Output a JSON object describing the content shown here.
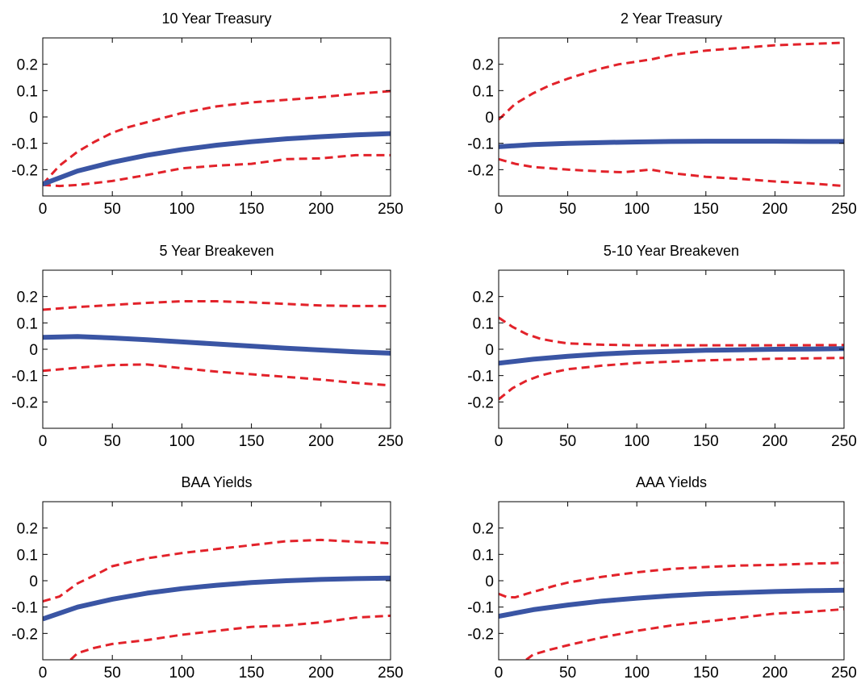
{
  "figure": {
    "background": "#ffffff"
  },
  "style": {
    "irf_color": "#3a55a4",
    "band_color": "#e2222a"
  },
  "chart_data": [
    {
      "type": "line",
      "title": "10 Year Treasury",
      "xlim": [
        0,
        250
      ],
      "ylim": [
        -0.3,
        0.3
      ],
      "xticks": [
        0,
        50,
        100,
        150,
        200,
        250
      ],
      "yticks": [
        -0.2,
        -0.1,
        0,
        0.1,
        0.2
      ],
      "ytick_labels": [
        "-0.2",
        "-0.1",
        "0",
        "0.1",
        "0.2"
      ],
      "grid": false,
      "series": [
        {
          "role": "point estimate",
          "style": "solid",
          "color": "#3a55a4",
          "x": [
            0,
            25,
            50,
            75,
            100,
            125,
            150,
            175,
            200,
            225,
            250
          ],
          "y": [
            -0.255,
            -0.205,
            -0.172,
            -0.145,
            -0.124,
            -0.107,
            -0.094,
            -0.083,
            -0.075,
            -0.068,
            -0.063
          ]
        },
        {
          "role": "upper bound",
          "style": "dashed",
          "color": "#e2222a",
          "x": [
            0,
            12,
            25,
            37,
            50,
            62,
            75,
            100,
            125,
            150,
            175,
            200,
            225,
            250
          ],
          "y": [
            -0.255,
            -0.185,
            -0.132,
            -0.095,
            -0.06,
            -0.038,
            -0.02,
            0.015,
            0.04,
            0.055,
            0.065,
            0.075,
            0.088,
            0.098
          ]
        },
        {
          "role": "lower bound",
          "style": "dashed",
          "color": "#e2222a",
          "x": [
            0,
            12,
            25,
            50,
            75,
            100,
            125,
            150,
            175,
            200,
            225,
            250
          ],
          "y": [
            -0.258,
            -0.262,
            -0.258,
            -0.243,
            -0.22,
            -0.195,
            -0.185,
            -0.178,
            -0.16,
            -0.157,
            -0.145,
            -0.145
          ]
        }
      ]
    },
    {
      "type": "line",
      "title": "2 Year Treasury",
      "xlim": [
        0,
        250
      ],
      "ylim": [
        -0.3,
        0.3
      ],
      "xticks": [
        0,
        50,
        100,
        150,
        200,
        250
      ],
      "yticks": [
        -0.2,
        -0.1,
        0,
        0.1,
        0.2
      ],
      "ytick_labels": [
        "-0.2",
        "-0.1",
        "0",
        "0.1",
        "0.2"
      ],
      "grid": false,
      "series": [
        {
          "role": "point estimate",
          "style": "solid",
          "color": "#3a55a4",
          "x": [
            0,
            25,
            50,
            75,
            100,
            125,
            150,
            175,
            200,
            225,
            250
          ],
          "y": [
            -0.113,
            -0.105,
            -0.1,
            -0.097,
            -0.095,
            -0.093,
            -0.092,
            -0.092,
            -0.092,
            -0.093,
            -0.093
          ]
        },
        {
          "role": "upper bound",
          "style": "dashed",
          "color": "#e2222a",
          "x": [
            0,
            12,
            25,
            37,
            50,
            62,
            75,
            87,
            100,
            112,
            125,
            150,
            175,
            200,
            225,
            250
          ],
          "y": [
            -0.01,
            0.05,
            0.09,
            0.12,
            0.145,
            0.165,
            0.185,
            0.2,
            0.21,
            0.22,
            0.235,
            0.252,
            0.262,
            0.272,
            0.277,
            0.282
          ]
        },
        {
          "role": "lower bound",
          "style": "dashed",
          "color": "#e2222a",
          "x": [
            0,
            12,
            25,
            50,
            75,
            90,
            100,
            110,
            125,
            150,
            175,
            200,
            225,
            250
          ],
          "y": [
            -0.16,
            -0.178,
            -0.19,
            -0.2,
            -0.207,
            -0.21,
            -0.205,
            -0.2,
            -0.213,
            -0.227,
            -0.235,
            -0.245,
            -0.252,
            -0.262
          ]
        }
      ]
    },
    {
      "type": "line",
      "title": "5 Year Breakeven",
      "xlim": [
        0,
        250
      ],
      "ylim": [
        -0.3,
        0.3
      ],
      "xticks": [
        0,
        50,
        100,
        150,
        200,
        250
      ],
      "yticks": [
        -0.2,
        -0.1,
        0,
        0.1,
        0.2
      ],
      "ytick_labels": [
        "-0.2",
        "-0.1",
        "0",
        "0.1",
        "0.2"
      ],
      "grid": false,
      "series": [
        {
          "role": "point estimate",
          "style": "solid",
          "color": "#3a55a4",
          "x": [
            0,
            25,
            50,
            75,
            100,
            125,
            150,
            175,
            200,
            225,
            250
          ],
          "y": [
            0.045,
            0.048,
            0.043,
            0.036,
            0.028,
            0.02,
            0.012,
            0.004,
            -0.003,
            -0.01,
            -0.015
          ]
        },
        {
          "role": "upper bound",
          "style": "dashed",
          "color": "#e2222a",
          "x": [
            0,
            25,
            50,
            75,
            100,
            125,
            150,
            175,
            200,
            225,
            250
          ],
          "y": [
            0.15,
            0.16,
            0.168,
            0.176,
            0.182,
            0.182,
            0.178,
            0.172,
            0.166,
            0.164,
            0.164
          ]
        },
        {
          "role": "lower bound",
          "style": "dashed",
          "color": "#e2222a",
          "x": [
            0,
            25,
            50,
            75,
            100,
            125,
            150,
            175,
            200,
            225,
            250
          ],
          "y": [
            -0.082,
            -0.07,
            -0.06,
            -0.058,
            -0.072,
            -0.085,
            -0.095,
            -0.105,
            -0.115,
            -0.128,
            -0.137
          ]
        }
      ]
    },
    {
      "type": "line",
      "title": "5-10 Year Breakeven",
      "xlim": [
        0,
        250
      ],
      "ylim": [
        -0.3,
        0.3
      ],
      "xticks": [
        0,
        50,
        100,
        150,
        200,
        250
      ],
      "yticks": [
        -0.2,
        -0.1,
        0,
        0.1,
        0.2
      ],
      "ytick_labels": [
        "-0.2",
        "-0.1",
        "0",
        "0.1",
        "0.2"
      ],
      "grid": false,
      "series": [
        {
          "role": "point estimate",
          "style": "solid",
          "color": "#3a55a4",
          "x": [
            0,
            25,
            50,
            75,
            100,
            125,
            150,
            175,
            200,
            225,
            250
          ],
          "y": [
            -0.053,
            -0.038,
            -0.027,
            -0.018,
            -0.012,
            -0.008,
            -0.004,
            -0.002,
            0,
            0.001,
            0.002
          ]
        },
        {
          "role": "upper bound",
          "style": "dashed",
          "color": "#e2222a",
          "x": [
            0,
            10,
            20,
            30,
            40,
            50,
            75,
            100,
            150,
            200,
            250
          ],
          "y": [
            0.12,
            0.085,
            0.058,
            0.04,
            0.03,
            0.022,
            0.017,
            0.015,
            0.015,
            0.015,
            0.016
          ]
        },
        {
          "role": "lower bound",
          "style": "dashed",
          "color": "#e2222a",
          "x": [
            0,
            10,
            20,
            30,
            40,
            50,
            75,
            100,
            150,
            200,
            250
          ],
          "y": [
            -0.19,
            -0.148,
            -0.12,
            -0.1,
            -0.087,
            -0.076,
            -0.062,
            -0.052,
            -0.042,
            -0.036,
            -0.033
          ]
        }
      ]
    },
    {
      "type": "line",
      "title": "BAA Yields",
      "xlim": [
        0,
        250
      ],
      "ylim": [
        -0.3,
        0.3
      ],
      "xticks": [
        0,
        50,
        100,
        150,
        200,
        250
      ],
      "yticks": [
        -0.2,
        -0.1,
        0,
        0.1,
        0.2
      ],
      "ytick_labels": [
        "-0.2",
        "-0.1",
        "0",
        "0.1",
        "0.2"
      ],
      "grid": false,
      "series": [
        {
          "role": "point estimate",
          "style": "solid",
          "color": "#3a55a4",
          "x": [
            0,
            25,
            50,
            75,
            100,
            125,
            150,
            175,
            200,
            225,
            250
          ],
          "y": [
            -0.145,
            -0.1,
            -0.07,
            -0.047,
            -0.03,
            -0.017,
            -0.007,
            0,
            0.005,
            0.008,
            0.01
          ]
        },
        {
          "role": "upper bound",
          "style": "dashed",
          "color": "#e2222a",
          "x": [
            0,
            12,
            25,
            37,
            50,
            62,
            75,
            100,
            125,
            150,
            175,
            200,
            225,
            250
          ],
          "y": [
            -0.078,
            -0.06,
            -0.01,
            0.02,
            0.055,
            0.07,
            0.085,
            0.105,
            0.12,
            0.135,
            0.15,
            0.155,
            0.148,
            0.142
          ]
        },
        {
          "role": "lower bound",
          "style": "dashed",
          "color": "#e2222a",
          "x": [
            20,
            25,
            37,
            50,
            75,
            100,
            125,
            150,
            175,
            200,
            225,
            250
          ],
          "y": [
            -0.3,
            -0.275,
            -0.255,
            -0.24,
            -0.225,
            -0.205,
            -0.19,
            -0.175,
            -0.17,
            -0.158,
            -0.14,
            -0.133
          ]
        }
      ]
    },
    {
      "type": "line",
      "title": "AAA Yields",
      "xlim": [
        0,
        250
      ],
      "ylim": [
        -0.3,
        0.3
      ],
      "xticks": [
        0,
        50,
        100,
        150,
        200,
        250
      ],
      "yticks": [
        -0.2,
        -0.1,
        0,
        0.1,
        0.2
      ],
      "ytick_labels": [
        "-0.2",
        "-0.1",
        "0",
        "0.1",
        "0.2"
      ],
      "grid": false,
      "series": [
        {
          "role": "point estimate",
          "style": "solid",
          "color": "#3a55a4",
          "x": [
            0,
            25,
            50,
            75,
            100,
            125,
            150,
            175,
            200,
            225,
            250
          ],
          "y": [
            -0.135,
            -0.11,
            -0.092,
            -0.077,
            -0.066,
            -0.057,
            -0.05,
            -0.045,
            -0.041,
            -0.038,
            -0.036
          ]
        },
        {
          "role": "upper bound",
          "style": "dashed",
          "color": "#e2222a",
          "x": [
            0,
            6,
            12,
            20,
            30,
            40,
            50,
            75,
            100,
            125,
            150,
            175,
            200,
            225,
            250
          ],
          "y": [
            -0.05,
            -0.062,
            -0.063,
            -0.05,
            -0.035,
            -0.02,
            -0.007,
            0.015,
            0.032,
            0.045,
            0.052,
            0.058,
            0.06,
            0.065,
            0.068
          ]
        },
        {
          "role": "lower bound",
          "style": "dashed",
          "color": "#e2222a",
          "x": [
            20,
            25,
            37,
            50,
            75,
            100,
            125,
            150,
            175,
            200,
            225,
            250
          ],
          "y": [
            -0.3,
            -0.28,
            -0.262,
            -0.245,
            -0.215,
            -0.19,
            -0.17,
            -0.155,
            -0.14,
            -0.125,
            -0.118,
            -0.108
          ]
        }
      ]
    }
  ]
}
